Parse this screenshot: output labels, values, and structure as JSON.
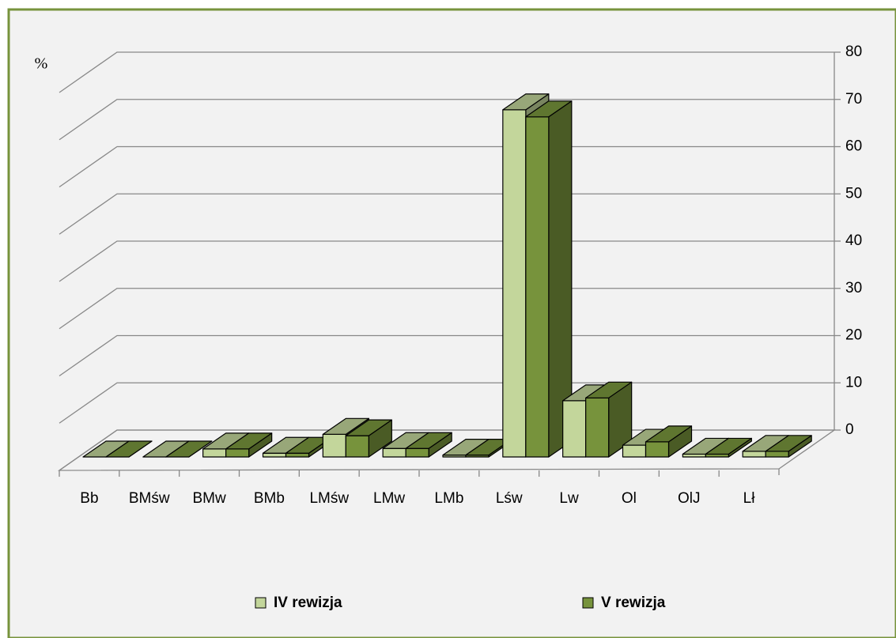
{
  "chart_data": {
    "type": "bar3d",
    "ylabel": "%",
    "categories": [
      "Bb",
      "BMśw",
      "BMw",
      "BMb",
      "LMśw",
      "LMw",
      "LMb",
      "Lśw",
      "Lw",
      "Ol",
      "OlJ",
      "Lł"
    ],
    "series": [
      {
        "name": "IV rewizja",
        "color": "#c3d69b",
        "values": [
          0,
          0,
          1.7,
          0.8,
          4.8,
          1.8,
          0.4,
          73.5,
          11.9,
          2.5,
          0.6,
          1.2
        ]
      },
      {
        "name": "V rewizja",
        "color": "#77933c",
        "values": [
          0,
          0,
          1.7,
          0.8,
          4.5,
          1.8,
          0.4,
          72.0,
          12.5,
          3.2,
          0.6,
          1.2
        ]
      }
    ],
    "ylim": [
      0,
      80
    ],
    "yticks": [
      0,
      10,
      20,
      30,
      40,
      50,
      60,
      70,
      80
    ],
    "grid": true
  }
}
